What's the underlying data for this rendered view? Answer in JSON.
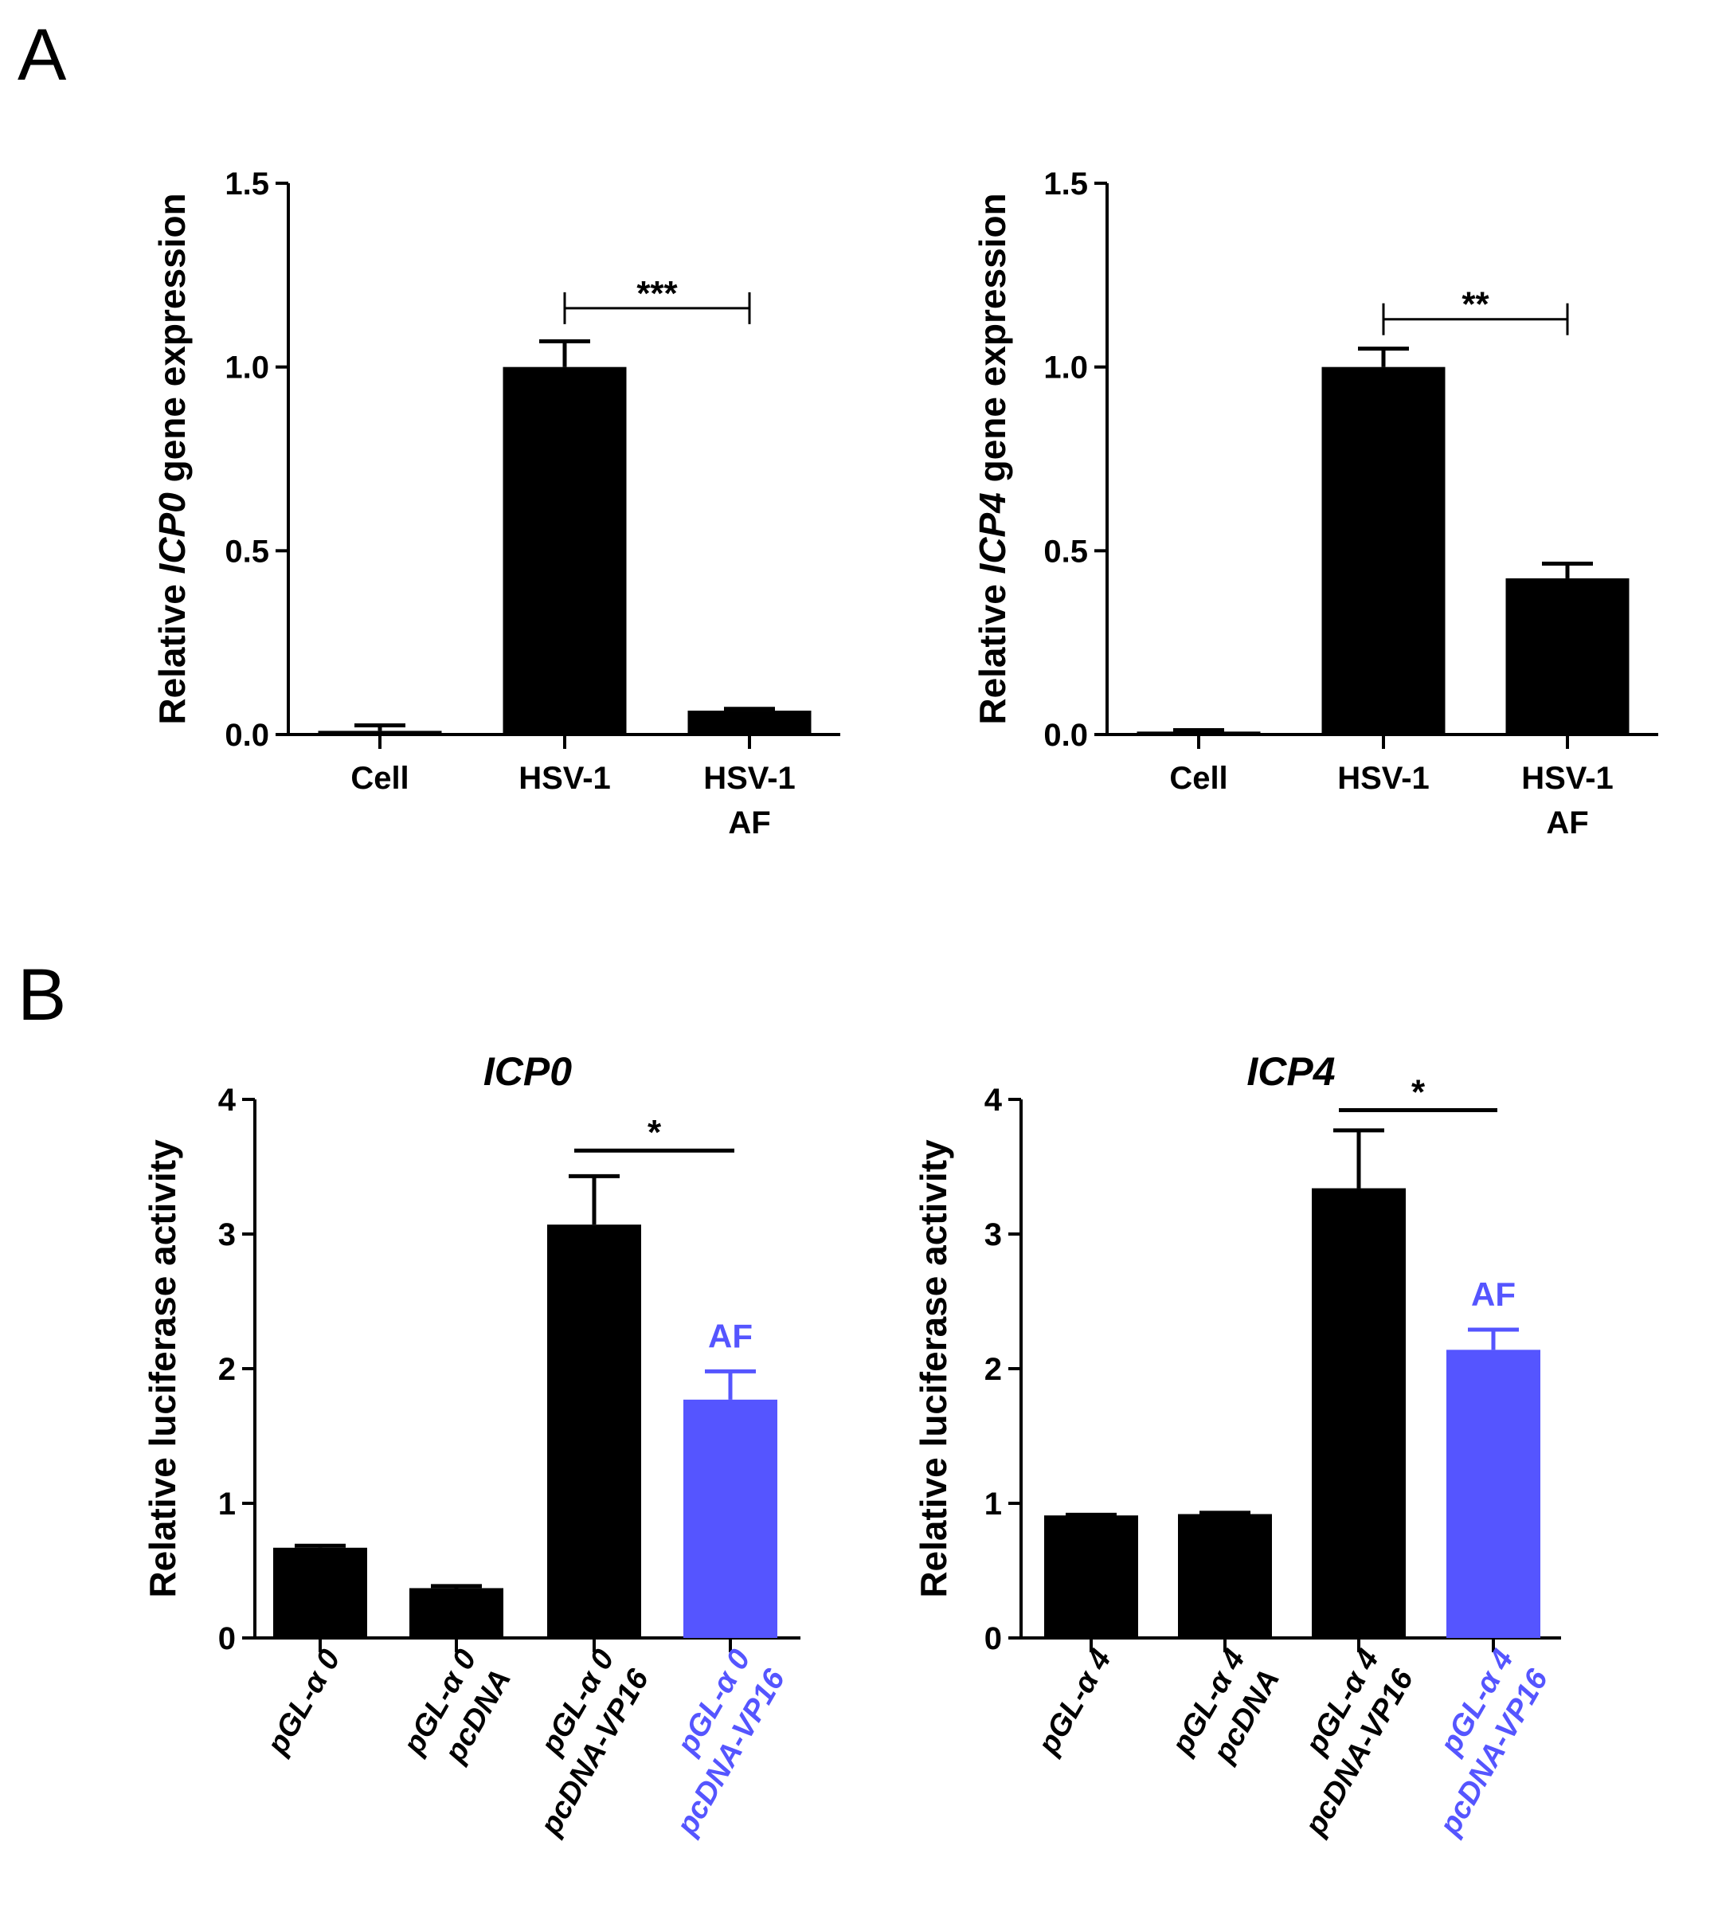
{
  "panels": {
    "A": {
      "label": "A"
    },
    "B": {
      "label": "B"
    }
  },
  "colors": {
    "black": "#000000",
    "blue": "#5555ff"
  },
  "chart_data": [
    {
      "id": "A1",
      "type": "bar",
      "panel": "A",
      "title": "",
      "ylabel_parts": [
        "Relative ",
        "ICP0",
        " gene expression"
      ],
      "ylabel_italic": [
        false,
        true,
        false
      ],
      "ylim": [
        0,
        1.5
      ],
      "yticks": [
        0,
        0.5,
        1.0,
        1.5
      ],
      "ytick_labels": [
        "0.0",
        "0.5",
        "1.0",
        "1.5"
      ],
      "categories": [
        [
          "Cell"
        ],
        [
          "HSV-1"
        ],
        [
          "HSV-1",
          "AF"
        ]
      ],
      "values": [
        0.01,
        1.0,
        0.065
      ],
      "errors": [
        0.015,
        0.07,
        0.005
      ],
      "bar_colors": [
        "#000000",
        "#000000",
        "#000000"
      ],
      "significance": {
        "from": 1,
        "to": 2,
        "label": "***",
        "y": 1.16,
        "style": "bracket"
      }
    },
    {
      "id": "A2",
      "type": "bar",
      "panel": "A",
      "title": "",
      "ylabel_parts": [
        "Relative ",
        "ICP4",
        " gene expression"
      ],
      "ylabel_italic": [
        false,
        true,
        false
      ],
      "ylim": [
        0,
        1.5
      ],
      "yticks": [
        0,
        0.5,
        1.0,
        1.5
      ],
      "ytick_labels": [
        "0.0",
        "0.5",
        "1.0",
        "1.5"
      ],
      "categories": [
        [
          "Cell"
        ],
        [
          "HSV-1"
        ],
        [
          "HSV-1",
          "AF"
        ]
      ],
      "values": [
        0.008,
        1.0,
        0.425
      ],
      "errors": [
        0.004,
        0.05,
        0.04
      ],
      "bar_colors": [
        "#000000",
        "#000000",
        "#000000"
      ],
      "significance": {
        "from": 1,
        "to": 2,
        "label": "**",
        "y": 1.13,
        "style": "bracket"
      }
    },
    {
      "id": "B1",
      "type": "bar",
      "panel": "B",
      "title": "ICP0",
      "ylabel_parts": [
        "Relative luciferase activity"
      ],
      "ylabel_italic": [
        false
      ],
      "ylim": [
        0,
        4
      ],
      "yticks": [
        0,
        1,
        2,
        3,
        4
      ],
      "ytick_labels": [
        "0",
        "1",
        "2",
        "3",
        "4"
      ],
      "categories": [
        [
          "pGL-α 0"
        ],
        [
          "pGL-α 0",
          "pcDNA"
        ],
        [
          "pGL-α 0",
          "pcDNA-VP16"
        ],
        [
          "pGL-α 0",
          "pcDNA-VP16"
        ]
      ],
      "category_colors": [
        "#000000",
        "#000000",
        "#000000",
        "#5555ff"
      ],
      "values": [
        0.67,
        0.37,
        3.07,
        1.77
      ],
      "errors": [
        0.015,
        0.015,
        0.36,
        0.21
      ],
      "bar_colors": [
        "#000000",
        "#000000",
        "#000000",
        "#5555ff"
      ],
      "bar_annotations": [
        {
          "index": 3,
          "label": "AF",
          "color": "#5555ff"
        }
      ],
      "significance": {
        "from": 2,
        "to": 3,
        "label": "*",
        "y": 3.62,
        "style": "line"
      }
    },
    {
      "id": "B2",
      "type": "bar",
      "panel": "B",
      "title": "ICP4",
      "ylabel_parts": [
        "Relative luciferase activity"
      ],
      "ylabel_italic": [
        false
      ],
      "ylim": [
        0,
        4
      ],
      "yticks": [
        0,
        1,
        2,
        3,
        4
      ],
      "ytick_labels": [
        "0",
        "1",
        "2",
        "3",
        "4"
      ],
      "categories": [
        [
          "pGL-α 4"
        ],
        [
          "pGL-α 4",
          "pcDNA"
        ],
        [
          "pGL-α 4",
          "pcDNA-VP16"
        ],
        [
          "pGL-α 4",
          "pcDNA-VP16"
        ]
      ],
      "category_colors": [
        "#000000",
        "#000000",
        "#000000",
        "#5555ff"
      ],
      "values": [
        0.91,
        0.92,
        3.34,
        2.14
      ],
      "errors": [
        0.005,
        0.01,
        0.43,
        0.15
      ],
      "bar_colors": [
        "#000000",
        "#000000",
        "#000000",
        "#5555ff"
      ],
      "bar_annotations": [
        {
          "index": 3,
          "label": "AF",
          "color": "#5555ff"
        }
      ],
      "significance": {
        "from": 2,
        "to": 3,
        "label": "*",
        "y": 3.92,
        "style": "line"
      }
    }
  ]
}
